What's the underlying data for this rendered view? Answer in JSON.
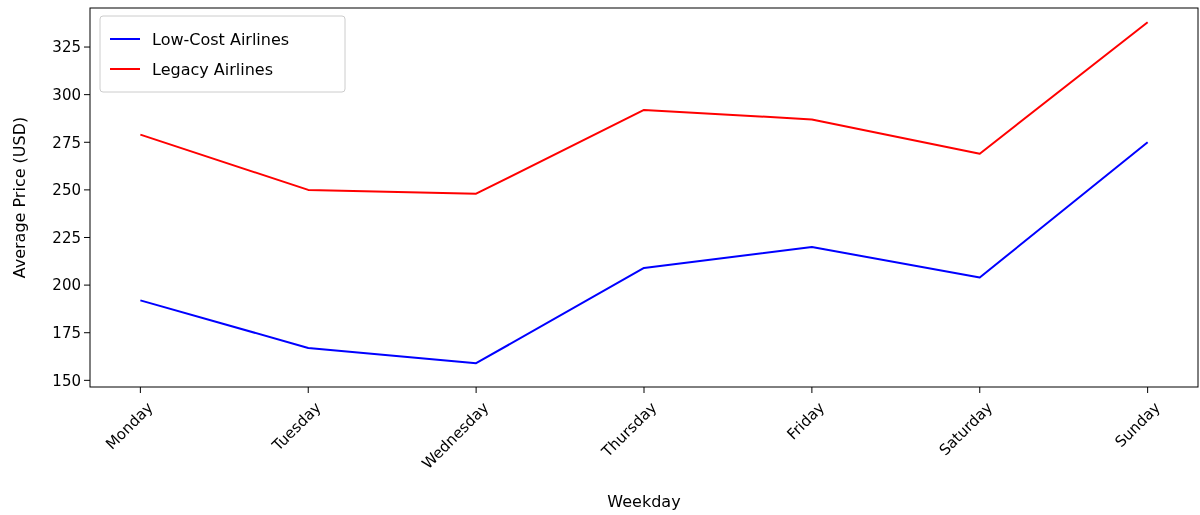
{
  "chart_data": {
    "type": "line",
    "xlabel": "Weekday",
    "ylabel": "Average Price (USD)",
    "categories": [
      "Monday",
      "Tuesday",
      "Wednesday",
      "Thursday",
      "Friday",
      "Saturday",
      "Sunday"
    ],
    "series": [
      {
        "name": "Low-Cost Airlines",
        "color": "#0000ff",
        "values": [
          192,
          167,
          159,
          209,
          220,
          204,
          275
        ]
      },
      {
        "name": "Legacy Airlines",
        "color": "#ff0000",
        "values": [
          279,
          250,
          248,
          292,
          287,
          269,
          338
        ]
      }
    ],
    "ylim": [
      146.5,
      345.5
    ],
    "yticks": [
      150,
      175,
      200,
      225,
      250,
      275,
      300,
      325
    ],
    "legend": "top left",
    "grid": false
  }
}
